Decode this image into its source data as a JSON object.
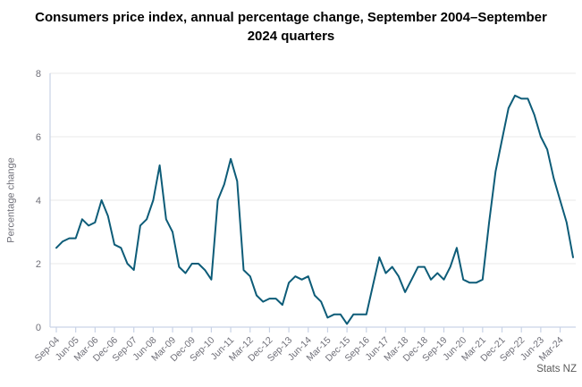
{
  "title": "Consumers price index, annual percentage change, September 2004–September 2024 quarters",
  "source": "Stats NZ",
  "colors": {
    "line": "#0d5c78",
    "grid": "#e8e8e8",
    "axis": "#c9d3e6",
    "tick_text": "#6f6f78",
    "source_text": "#5a5a5a",
    "title_text": "#000000"
  },
  "chart_data": {
    "type": "line",
    "title": "Consumers price index, annual percentage change, September 2004–September 2024 quarters",
    "xlabel": "",
    "ylabel": "Percentage change",
    "ylim": [
      0,
      8
    ],
    "yticks": [
      0,
      2,
      4,
      6,
      8
    ],
    "x_tick_every": 3,
    "grid": "horizontal",
    "legend": "none",
    "categories": [
      "Sep-04",
      "Dec-04",
      "Mar-05",
      "Jun-05",
      "Sep-05",
      "Dec-05",
      "Mar-06",
      "Jun-06",
      "Sep-06",
      "Dec-06",
      "Mar-07",
      "Jun-07",
      "Sep-07",
      "Dec-07",
      "Mar-08",
      "Jun-08",
      "Sep-08",
      "Dec-08",
      "Mar-09",
      "Jun-09",
      "Sep-09",
      "Dec-09",
      "Mar-10",
      "Jun-10",
      "Sep-10",
      "Dec-10",
      "Mar-11",
      "Jun-11",
      "Sep-11",
      "Dec-11",
      "Mar-12",
      "Jun-12",
      "Sep-12",
      "Dec-12",
      "Mar-13",
      "Jun-13",
      "Sep-13",
      "Dec-13",
      "Mar-14",
      "Jun-14",
      "Sep-14",
      "Dec-14",
      "Mar-15",
      "Jun-15",
      "Sep-15",
      "Dec-15",
      "Mar-16",
      "Jun-16",
      "Sep-16",
      "Dec-16",
      "Mar-17",
      "Jun-17",
      "Sep-17",
      "Dec-17",
      "Mar-18",
      "Jun-18",
      "Sep-18",
      "Dec-18",
      "Mar-19",
      "Jun-19",
      "Sep-19",
      "Dec-19",
      "Mar-20",
      "Jun-20",
      "Sep-20",
      "Dec-20",
      "Mar-21",
      "Jun-21",
      "Sep-21",
      "Dec-21",
      "Mar-22",
      "Jun-22",
      "Sep-22",
      "Dec-22",
      "Mar-23",
      "Jun-23",
      "Sep-23",
      "Dec-23",
      "Mar-24",
      "Jun-24",
      "Sep-24"
    ],
    "series": [
      {
        "name": "CPI annual percentage change",
        "color": "#0d5c78",
        "values": [
          2.5,
          2.7,
          2.8,
          2.8,
          3.4,
          3.2,
          3.3,
          4.0,
          3.5,
          2.6,
          2.5,
          2.0,
          1.8,
          3.2,
          3.4,
          4.0,
          5.1,
          3.4,
          3.0,
          1.9,
          1.7,
          2.0,
          2.0,
          1.8,
          1.5,
          4.0,
          4.5,
          5.3,
          4.6,
          1.8,
          1.6,
          1.0,
          0.8,
          0.9,
          0.9,
          0.7,
          1.4,
          1.6,
          1.5,
          1.6,
          1.0,
          0.8,
          0.3,
          0.4,
          0.4,
          0.1,
          0.4,
          0.4,
          0.4,
          1.3,
          2.2,
          1.7,
          1.9,
          1.6,
          1.1,
          1.5,
          1.9,
          1.9,
          1.5,
          1.7,
          1.5,
          1.9,
          2.5,
          1.5,
          1.4,
          1.4,
          1.5,
          3.3,
          4.9,
          5.9,
          6.9,
          7.3,
          7.2,
          7.2,
          6.7,
          6.0,
          5.6,
          4.7,
          4.0,
          3.3,
          2.2
        ]
      }
    ]
  }
}
